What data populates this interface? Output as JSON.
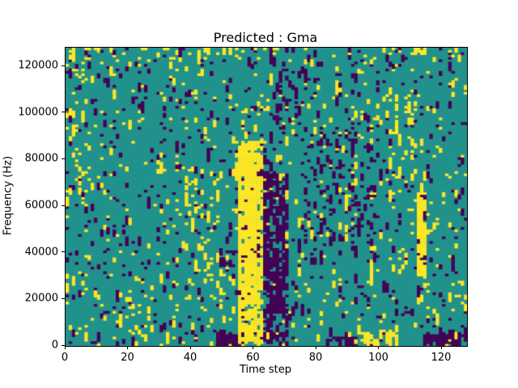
{
  "figure": {
    "title": "Predicted : Gma",
    "xlabel": "Time step",
    "ylabel": "Frequency (Hz)"
  },
  "chart_data": {
    "type": "heatmap",
    "title": "Predicted : Gma",
    "xlabel": "Time step",
    "ylabel": "Frequency (Hz)",
    "xlim": [
      0,
      128
    ],
    "ylim": [
      0,
      128000
    ],
    "x_ticks": [
      0,
      20,
      40,
      60,
      80,
      100,
      120
    ],
    "y_ticks": [
      0,
      20000,
      40000,
      60000,
      80000,
      100000,
      120000
    ],
    "grid": false,
    "legend": "none",
    "nx": 128,
    "ny": 128,
    "value_meaning": {
      "0": "low (dark purple)",
      "1": "background (teal)",
      "2": "high (yellow)"
    },
    "palette": [
      "#440154",
      "#21918c",
      "#fde725"
    ],
    "background_value": 1,
    "base_prob": {
      "yellow": 0.035,
      "purple": 0.04
    },
    "run_boost": 0.38,
    "seed": 42,
    "features": [
      {
        "x0": 55,
        "x1": 63,
        "y0": 0,
        "y1": 88000,
        "value": 2,
        "p": 0.5
      },
      {
        "x0": 57,
        "x1": 61,
        "y0": 18000,
        "y1": 82000,
        "value": 2,
        "p": 0.9
      },
      {
        "x0": 63,
        "x1": 71,
        "y0": 0,
        "y1": 74000,
        "value": 0,
        "p": 0.45
      },
      {
        "x0": 112,
        "x1": 115,
        "y0": 30000,
        "y1": 66000,
        "value": 2,
        "p": 0.65
      },
      {
        "x0": 48,
        "x1": 57,
        "y0": 0,
        "y1": 5000,
        "value": 0,
        "p": 0.7
      },
      {
        "x0": 83,
        "x1": 93,
        "y0": 0,
        "y1": 4000,
        "value": 0,
        "p": 0.5
      },
      {
        "x0": 93,
        "x1": 106,
        "y0": 0,
        "y1": 6000,
        "value": 2,
        "p": 0.45
      },
      {
        "x0": 114,
        "x1": 128,
        "y0": 0,
        "y1": 5000,
        "value": 0,
        "p": 0.55
      },
      {
        "x0": 76,
        "x1": 100,
        "y0": 35000,
        "y1": 95000,
        "value": 0,
        "p": 0.12
      },
      {
        "x0": 38,
        "x1": 50,
        "y0": 20000,
        "y1": 75000,
        "value": 2,
        "p": 0.1
      },
      {
        "x0": 0,
        "x1": 8,
        "y0": 55000,
        "y1": 128000,
        "value": 2,
        "p": 0.12
      },
      {
        "x0": 100,
        "x1": 112,
        "y0": 60000,
        "y1": 110000,
        "value": 2,
        "p": 0.1
      },
      {
        "x0": 65,
        "x1": 75,
        "y0": 90000,
        "y1": 128000,
        "value": 0,
        "p": 0.15
      },
      {
        "x0": 20,
        "x1": 35,
        "y0": 0,
        "y1": 30000,
        "value": 2,
        "p": 0.08
      },
      {
        "x0": 0,
        "x1": 128,
        "y0": 124000,
        "y1": 128000,
        "value": 2,
        "p": 0.1
      }
    ]
  }
}
